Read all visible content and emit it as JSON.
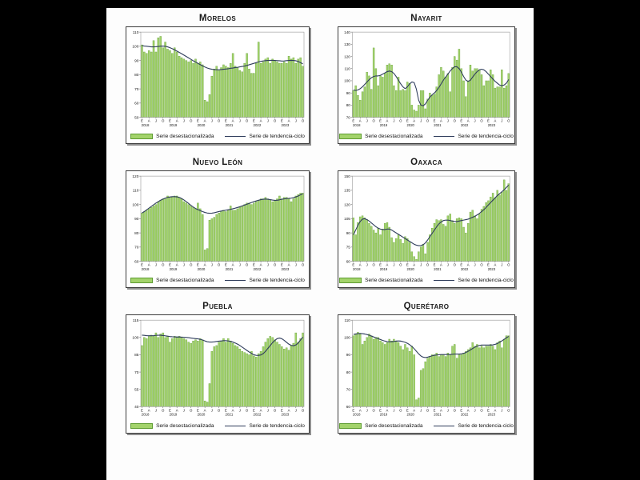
{
  "page": {
    "background": "#000000",
    "paper": "#fdfdfd"
  },
  "colors": {
    "bar_fill": "#a3d36b",
    "bar_stroke": "#5f9c33",
    "trend_line": "#2f3d5c",
    "frame": "#999999",
    "text": "#111111"
  },
  "legend": {
    "bar_label": "Serie desestacionalizada",
    "line_label": "Serie de tendencia-ciclo"
  },
  "x_axis": {
    "month_tick_labels": [
      "E",
      "A",
      "J",
      "O"
    ],
    "years": [
      "2018",
      "2019",
      "2020",
      "2021",
      "2022",
      "2023"
    ],
    "months_total": 70
  },
  "chart_data": [
    {
      "type": "bar",
      "title": "Morelos",
      "ylim": [
        50,
        110
      ],
      "yticks": [
        50,
        60,
        70,
        80,
        90,
        100,
        110
      ],
      "series": [
        {
          "name": "Serie desestacionalizada",
          "values": [
            101,
            96,
            95,
            97,
            96,
            104,
            96,
            106,
            107,
            99,
            103,
            98,
            97,
            95,
            99,
            96,
            93,
            92,
            91,
            90,
            89,
            90,
            88,
            91,
            88,
            89,
            87,
            62,
            61,
            66,
            79,
            84,
            86,
            83,
            85,
            87,
            86,
            85,
            88,
            95,
            86,
            85,
            83,
            82,
            88,
            95,
            84,
            81,
            81,
            88,
            103,
            88,
            89,
            91,
            92,
            88,
            91,
            90,
            89,
            88,
            88,
            89,
            88,
            93,
            91,
            92,
            88,
            91,
            92,
            86
          ]
        },
        {
          "name": "Serie de tendencia-ciclo",
          "values": [
            100.5,
            100.2,
            100,
            99.8,
            99.6,
            99.6,
            99.7,
            99.9,
            100.1,
            100.2,
            100,
            99.6,
            99,
            98.3,
            97.5,
            96.6,
            95.7,
            94.8,
            93.8,
            92.8,
            91.8,
            90.8,
            89.8,
            88.9,
            88,
            87.1,
            86.2,
            85.4,
            84.7,
            84.2,
            83.8,
            83.6,
            83.5,
            83.5,
            83.6,
            83.8,
            84,
            84.2,
            84.5,
            84.7,
            85,
            85.2,
            85.5,
            85.8,
            86.1,
            86.5,
            87,
            87.5,
            88,
            88.5,
            89,
            89.4,
            89.7,
            89.9,
            90,
            90.1,
            90.1,
            90,
            89.9,
            89.8,
            89.6,
            89.7,
            89.9,
            90,
            90.1,
            90,
            89.8,
            89.3,
            88.5,
            87.6
          ]
        }
      ]
    },
    {
      "type": "bar",
      "title": "Nayarit",
      "ylim": [
        70,
        140
      ],
      "yticks": [
        70,
        80,
        90,
        100,
        110,
        120,
        130,
        140
      ],
      "series": [
        {
          "name": "Serie desestacionalizada",
          "values": [
            92,
            96,
            88,
            84,
            91,
            95,
            107,
            104,
            93,
            127,
            110,
            96,
            104,
            103,
            106,
            113,
            114,
            113,
            96,
            92,
            103,
            92,
            93,
            92,
            99,
            98,
            80,
            76,
            75,
            80,
            92,
            92,
            77,
            85,
            90,
            88,
            89,
            95,
            105,
            111,
            108,
            103,
            106,
            91,
            111,
            120,
            117,
            126,
            110,
            100,
            87,
            100,
            113,
            108,
            110,
            110,
            109,
            105,
            96,
            100,
            100,
            109,
            105,
            94,
            95,
            95,
            109,
            94,
            96,
            106
          ]
        },
        {
          "name": "Serie de tendencia-ciclo",
          "values": [
            92.5,
            92,
            92.5,
            93.5,
            95,
            97,
            99,
            101,
            102.5,
            103.5,
            104,
            104,
            104.5,
            105.5,
            106.5,
            107.5,
            108,
            107.5,
            106,
            103.5,
            100.5,
            97.5,
            95,
            93.5,
            95,
            97.5,
            99,
            98.5,
            93,
            84,
            80,
            79.5,
            81,
            84,
            86.5,
            88.5,
            90,
            92,
            94.5,
            97.5,
            100.5,
            103,
            105.5,
            108,
            110,
            111.5,
            111.5,
            110,
            107,
            103.5,
            100.5,
            99.5,
            100.5,
            103,
            105.5,
            107.5,
            109,
            109.5,
            109,
            107.5,
            105.5,
            103.5,
            101.5,
            99.5,
            98,
            96.5,
            96,
            96.5,
            98,
            101
          ]
        }
      ]
    },
    {
      "type": "bar",
      "title": "Nuevo León",
      "ylim": [
        60,
        120
      ],
      "yticks": [
        60,
        70,
        80,
        90,
        100,
        110,
        120
      ],
      "series": [
        {
          "name": "Serie desestacionalizada",
          "values": [
            94,
            95,
            96,
            97,
            98,
            99,
            100,
            102,
            103,
            104,
            104,
            106,
            105,
            105,
            106,
            106,
            105,
            104,
            102,
            101,
            100,
            99,
            98,
            97,
            101,
            97,
            93,
            68,
            69,
            89,
            90,
            91,
            93,
            94,
            95,
            96,
            95,
            96,
            99,
            96,
            96,
            97,
            98,
            99,
            100,
            101,
            101,
            100,
            101,
            102,
            103,
            104,
            104,
            105,
            104,
            103,
            102,
            103,
            104,
            106,
            104,
            105,
            105,
            104,
            102,
            104,
            106,
            107,
            108,
            108
          ]
        },
        {
          "name": "Serie de tendencia-ciclo",
          "values": [
            94,
            95,
            96.2,
            97.4,
            98.6,
            99.8,
            101,
            102,
            103,
            103.8,
            104.5,
            105,
            105.3,
            105.5,
            105.5,
            105.4,
            105,
            104.2,
            103.2,
            102,
            100.7,
            99.4,
            98.2,
            97.2,
            96.4,
            95.7,
            95,
            94.4,
            94,
            93.8,
            93.9,
            94.2,
            94.6,
            95,
            95.4,
            95.7,
            96,
            96.3,
            96.6,
            97,
            97.4,
            97.9,
            98.4,
            99,
            99.6,
            100.2,
            100.8,
            101.4,
            102,
            102.5,
            103,
            103.4,
            103.7,
            103.8,
            103.7,
            103.4,
            103.1,
            102.9,
            103,
            103.3,
            103.7,
            104,
            104.2,
            104.3,
            104.5,
            104.8,
            105.3,
            106,
            106.8,
            107.6
          ]
        }
      ]
    },
    {
      "type": "bar",
      "title": "Oaxaca",
      "ylim": [
        60,
        150
      ],
      "yticks": [
        60,
        75,
        90,
        105,
        120,
        135,
        150
      ],
      "series": [
        {
          "name": "Serie desestacionalizada",
          "values": [
            106,
            88,
            101,
            107,
            108,
            106,
            104,
            100,
            97,
            93,
            90,
            95,
            88,
            94,
            100,
            101,
            96,
            85,
            80,
            84,
            88,
            83,
            79,
            86,
            84,
            80,
            70,
            65,
            62,
            70,
            75,
            78,
            68,
            80,
            88,
            95,
            100,
            104,
            103,
            104,
            99,
            97,
            108,
            110,
            103,
            100,
            105,
            106,
            105,
            96,
            90,
            100,
            112,
            114,
            108,
            105,
            110,
            115,
            118,
            122,
            124,
            128,
            132,
            127,
            135,
            130,
            133,
            146,
            135,
            142
          ]
        },
        {
          "name": "Serie de tendencia-ciclo",
          "values": [
            88,
            93,
            98,
            102,
            104.5,
            105,
            104,
            102.5,
            100.5,
            98.5,
            96.5,
            95,
            94,
            93.5,
            93.5,
            94,
            94,
            93,
            91.5,
            90,
            88.5,
            87,
            85.5,
            84,
            82.5,
            81,
            79.5,
            78,
            77,
            76.5,
            76.5,
            77.5,
            79.5,
            82.5,
            86,
            89.5,
            93,
            96.5,
            99.5,
            101.5,
            103,
            103.5,
            103.5,
            103,
            102.5,
            102,
            102,
            102.5,
            103,
            103.5,
            104,
            104.5,
            105.5,
            106.5,
            107.5,
            109,
            110.5,
            112.5,
            114.5,
            117,
            119.5,
            122,
            124.5,
            127,
            129.5,
            131.5,
            133.5,
            135.5,
            138,
            140.5
          ]
        }
      ]
    },
    {
      "type": "bar",
      "title": "Puebla",
      "ylim": [
        40,
        115
      ],
      "yticks": [
        40,
        55,
        70,
        85,
        100,
        115
      ],
      "series": [
        {
          "name": "Serie desestacionalizada",
          "values": [
            93,
            100,
            99,
            101,
            102,
            101,
            104,
            100,
            103,
            104,
            100,
            101,
            96,
            99,
            101,
            100,
            101,
            100,
            99,
            98,
            96,
            95,
            97,
            98,
            97,
            99,
            98,
            45,
            44,
            60,
            88,
            92,
            93,
            96,
            97,
            99,
            96,
            99,
            97,
            95,
            93,
            92,
            90,
            88,
            87,
            86,
            85,
            88,
            84,
            83,
            86,
            88,
            92,
            96,
            99,
            101,
            100,
            98,
            96,
            94,
            92,
            90,
            91,
            89,
            93,
            95,
            104,
            96,
            99,
            104
          ]
        },
        {
          "name": "Serie de tendencia-ciclo",
          "values": [
            102,
            101.8,
            101.6,
            101.5,
            101.5,
            101.6,
            101.8,
            101.9,
            101.9,
            101.7,
            101.4,
            101.1,
            100.8,
            100.6,
            100.5,
            100.4,
            100.4,
            100.3,
            100.2,
            100,
            99.8,
            99.5,
            99.2,
            99,
            98.8,
            98.4,
            97.8,
            97,
            96.3,
            96,
            96,
            96.2,
            96.5,
            96.8,
            97,
            97.2,
            97.2,
            97,
            96.6,
            96,
            95.2,
            94.2,
            93,
            91.6,
            90.2,
            88.8,
            87.4,
            86.2,
            85,
            84.5,
            84.4,
            84.8,
            86,
            88,
            90.5,
            93,
            95.5,
            97.5,
            99,
            99.5,
            98.9,
            97.5,
            95.8,
            94.2,
            93.2,
            92.8,
            93.5,
            95.2,
            97.8,
            100.3
          ]
        }
      ]
    },
    {
      "type": "bar",
      "title": "Querétaro",
      "ylim": [
        60,
        110
      ],
      "yticks": [
        60,
        70,
        80,
        90,
        100,
        110
      ],
      "series": [
        {
          "name": "Serie desestacionalizada",
          "values": [
            101,
            102,
            103,
            102,
            96,
            98,
            100,
            102,
            101,
            99,
            100,
            100,
            98,
            97,
            96,
            97,
            99,
            98,
            99,
            98,
            97,
            95,
            93,
            96,
            94,
            92,
            95,
            90,
            64,
            65,
            81,
            82,
            86,
            88,
            89,
            90,
            90,
            91,
            89,
            90,
            90,
            89,
            91,
            90,
            95,
            96,
            88,
            90,
            90,
            91,
            92,
            93,
            94,
            97,
            95,
            96,
            94,
            95,
            94,
            95,
            95,
            96,
            95,
            93,
            97,
            98,
            94,
            99,
            101,
            101
          ]
        },
        {
          "name": "Serie de tendencia-ciclo",
          "values": [
            101.8,
            102,
            102.2,
            102.3,
            102.2,
            102,
            101.7,
            101.3,
            100.8,
            100.3,
            99.8,
            99.3,
            98.8,
            98.3,
            97.9,
            97.6,
            97.5,
            97.5,
            97.7,
            97.9,
            98,
            97.9,
            97.6,
            97.2,
            96.6,
            95.8,
            94.8,
            93.5,
            92,
            90.5,
            89.3,
            88.6,
            88.4,
            88.6,
            89,
            89.4,
            89.7,
            89.9,
            90,
            90.1,
            90.1,
            90.1,
            90.1,
            90.2,
            90.3,
            90.4,
            90.4,
            90.4,
            90.5,
            90.8,
            91.3,
            92,
            92.8,
            93.6,
            94.4,
            95,
            95.4,
            95.6,
            95.6,
            95.6,
            95.6,
            95.6,
            95.7,
            96,
            96.5,
            97.2,
            98,
            98.9,
            99.8,
            100.6
          ]
        }
      ]
    }
  ]
}
